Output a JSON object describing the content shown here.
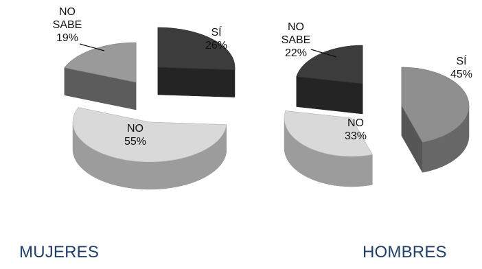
{
  "chart_data": [
    {
      "type": "pie",
      "title": "MUJERES",
      "categories": [
        "SÍ",
        "NO",
        "NO SABE"
      ],
      "values": [
        26,
        55,
        19
      ],
      "value_labels": [
        "26%",
        "55%",
        "19%"
      ],
      "label_lines": [
        [
          "SÍ",
          "26%"
        ],
        [
          "NO",
          "55%"
        ],
        [
          "NO",
          "SABE",
          "19%"
        ]
      ],
      "colors": {
        "SÍ": "#3c3c3c",
        "NO": "#d9d9d9",
        "NO SABE": "#9a9a9a"
      },
      "three_d": true
    },
    {
      "type": "pie",
      "title": "HOMBRES",
      "categories": [
        "SÍ",
        "NO",
        "NO SABE"
      ],
      "values": [
        45,
        33,
        22
      ],
      "value_labels": [
        "45%",
        "33%",
        "22%"
      ],
      "label_lines": [
        [
          "SÍ",
          "45%"
        ],
        [
          "NO",
          "33%"
        ],
        [
          "NO",
          "SABE",
          "22%"
        ]
      ],
      "colors": {
        "SÍ": "#8f8f8f",
        "NO": "#d9d9d9",
        "NO SABE": "#3c3c3c"
      },
      "three_d": true
    }
  ]
}
